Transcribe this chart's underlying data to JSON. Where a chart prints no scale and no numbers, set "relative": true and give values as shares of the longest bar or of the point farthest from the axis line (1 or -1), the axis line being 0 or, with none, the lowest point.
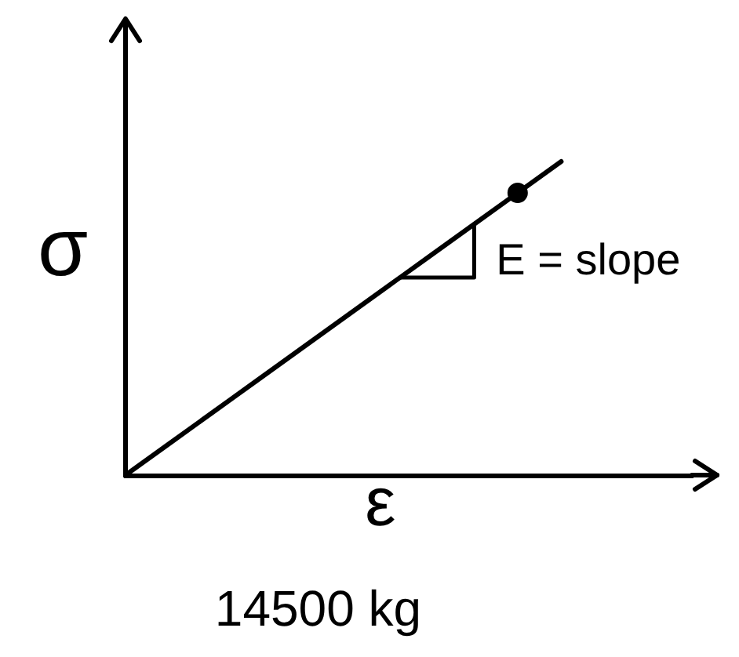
{
  "chart_data": {
    "type": "line",
    "xlabel": "ε",
    "ylabel": "σ",
    "annotations": [
      "E = slope",
      "14500 kg"
    ],
    "categories": [
      null,
      null,
      null,
      null,
      null,
      null,
      null,
      null,
      null,
      null,
      null,
      null,
      null,
      null
    ],
    "relative": true,
    "series": [
      {
        "color": "#000000",
        "values": [
          0,
          0.1,
          0.2,
          0.3,
          0.4,
          0.5,
          0.6,
          0.7,
          0.8,
          0.9,
          1,
          null,
          null,
          null
        ]
      },
      {
        "marker": "circle",
        "color": "#000000",
        "values": [
          null,
          null,
          null,
          null,
          null,
          null,
          null,
          null,
          null,
          0.9,
          null,
          null,
          null,
          null
        ]
      }
    ]
  }
}
